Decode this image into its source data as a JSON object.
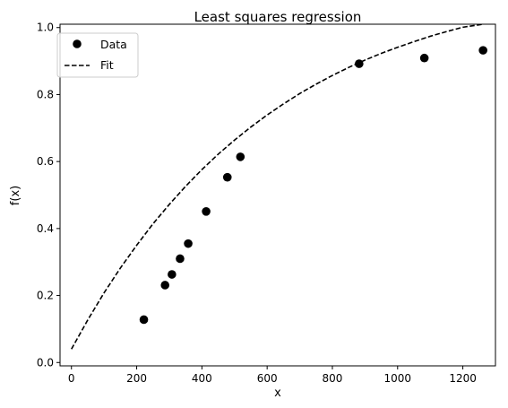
{
  "chart_data": {
    "type": "scatter",
    "title": "Least squares regression",
    "xlabel": "x",
    "ylabel": "f(x)",
    "xlim": [
      -35,
      1300
    ],
    "ylim": [
      -0.01,
      1.01
    ],
    "xticks": [
      0,
      200,
      400,
      600,
      800,
      1000,
      1200
    ],
    "yticks": [
      0.0,
      0.2,
      0.4,
      0.6,
      0.8,
      1.0
    ],
    "xtick_labels": [
      "0",
      "200",
      "400",
      "600",
      "800",
      "1000",
      "1200"
    ],
    "ytick_labels": [
      "0.0",
      "0.2",
      "0.4",
      "0.6",
      "0.8",
      "1.0"
    ],
    "legend_position": "top-left",
    "grid": false,
    "series": [
      {
        "name": "Data",
        "style": "markers",
        "color": "#000000",
        "points": [
          {
            "x": 222,
            "y": 0.128
          },
          {
            "x": 287,
            "y": 0.231
          },
          {
            "x": 308,
            "y": 0.263
          },
          {
            "x": 333,
            "y": 0.31
          },
          {
            "x": 358,
            "y": 0.355
          },
          {
            "x": 413,
            "y": 0.451
          },
          {
            "x": 478,
            "y": 0.553
          },
          {
            "x": 518,
            "y": 0.614
          },
          {
            "x": 882,
            "y": 0.892
          },
          {
            "x": 1082,
            "y": 0.909
          },
          {
            "x": 1262,
            "y": 0.932
          }
        ]
      },
      {
        "name": "Fit",
        "style": "dashed-line",
        "color": "#000000",
        "points": [
          {
            "x": 0,
            "y": 0.04
          },
          {
            "x": 50,
            "y": 0.127
          },
          {
            "x": 100,
            "y": 0.208
          },
          {
            "x": 150,
            "y": 0.282
          },
          {
            "x": 200,
            "y": 0.35
          },
          {
            "x": 250,
            "y": 0.414
          },
          {
            "x": 300,
            "y": 0.472
          },
          {
            "x": 350,
            "y": 0.526
          },
          {
            "x": 400,
            "y": 0.576
          },
          {
            "x": 450,
            "y": 0.622
          },
          {
            "x": 500,
            "y": 0.664
          },
          {
            "x": 550,
            "y": 0.703
          },
          {
            "x": 600,
            "y": 0.739
          },
          {
            "x": 650,
            "y": 0.772
          },
          {
            "x": 700,
            "y": 0.803
          },
          {
            "x": 750,
            "y": 0.831
          },
          {
            "x": 800,
            "y": 0.857
          },
          {
            "x": 850,
            "y": 0.881
          },
          {
            "x": 900,
            "y": 0.903
          },
          {
            "x": 950,
            "y": 0.923
          },
          {
            "x": 1000,
            "y": 0.941
          },
          {
            "x": 1050,
            "y": 0.958
          },
          {
            "x": 1100,
            "y": 0.974
          },
          {
            "x": 1150,
            "y": 0.988
          },
          {
            "x": 1200,
            "y": 1.001
          },
          {
            "x": 1262,
            "y": 1.016
          }
        ]
      }
    ]
  }
}
